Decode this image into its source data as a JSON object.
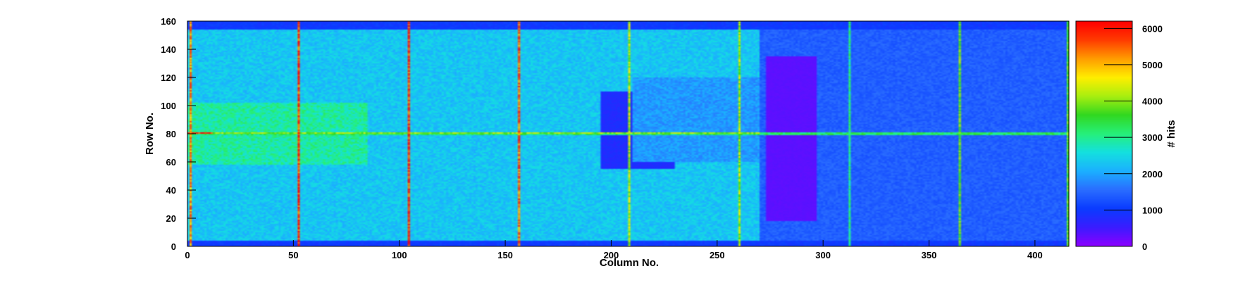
{
  "chart_data": {
    "type": "heatmap",
    "xlabel": "Column No.",
    "ylabel": "Row No.",
    "zlabel": "# hits",
    "xlim": [
      0,
      416
    ],
    "ylim": [
      0,
      160
    ],
    "zlim": [
      0,
      6200
    ],
    "x_ticks": [
      0,
      50,
      100,
      150,
      200,
      250,
      300,
      350,
      400
    ],
    "y_ticks": [
      0,
      20,
      40,
      60,
      80,
      100,
      120,
      140,
      160
    ],
    "z_ticks": [
      0,
      1000,
      2000,
      3000,
      4000,
      5000,
      6000
    ],
    "colormap": [
      "#8b00ff",
      "#3a1cff",
      "#0a3cff",
      "#2a6dff",
      "#1bb0ff",
      "#14e0e0",
      "#26f07a",
      "#31d820",
      "#a8ee10",
      "#ffee00",
      "#ff9d00",
      "#ff3c00",
      "#ff0000"
    ],
    "regions": [
      {
        "x": [
          0,
          270
        ],
        "y": [
          0,
          160
        ],
        "z": 2300
      },
      {
        "x": [
          0,
          85
        ],
        "y": [
          58,
          102
        ],
        "z": 2900
      },
      {
        "x": [
          270,
          416
        ],
        "y": [
          0,
          160
        ],
        "z": 1400
      },
      {
        "x": [
          273,
          297
        ],
        "y": [
          18,
          135
        ],
        "z": 300
      },
      {
        "x": [
          195,
          230
        ],
        "y": [
          55,
          110
        ],
        "z": 800
      },
      {
        "x": [
          210,
          270
        ],
        "y": [
          60,
          120
        ],
        "z": 1900
      },
      {
        "x": [
          0,
          416
        ],
        "y": [
          0,
          4
        ],
        "z": 1000
      },
      {
        "x": [
          0,
          416
        ],
        "y": [
          154,
          160
        ],
        "z": 1000
      },
      {
        "x": [
          0,
          416
        ],
        "y": [
          79,
          81
        ],
        "z": 3200
      }
    ],
    "column_hotlines": [
      {
        "x": 1,
        "z": 5200
      },
      {
        "x": 52,
        "z": 5800
      },
      {
        "x": 104,
        "z": 5900
      },
      {
        "x": 156,
        "z": 5500
      },
      {
        "x": 208,
        "z": 4200
      },
      {
        "x": 260,
        "z": 4100
      },
      {
        "x": 312,
        "z": 3000
      },
      {
        "x": 364,
        "z": 3800
      },
      {
        "x": 415,
        "z": 3700
      }
    ],
    "row_hotlines": [
      {
        "y": 80,
        "x": [
          0,
          12
        ],
        "z": 6000
      },
      {
        "y": 80,
        "x": [
          12,
          270
        ],
        "z": 4000
      }
    ]
  }
}
